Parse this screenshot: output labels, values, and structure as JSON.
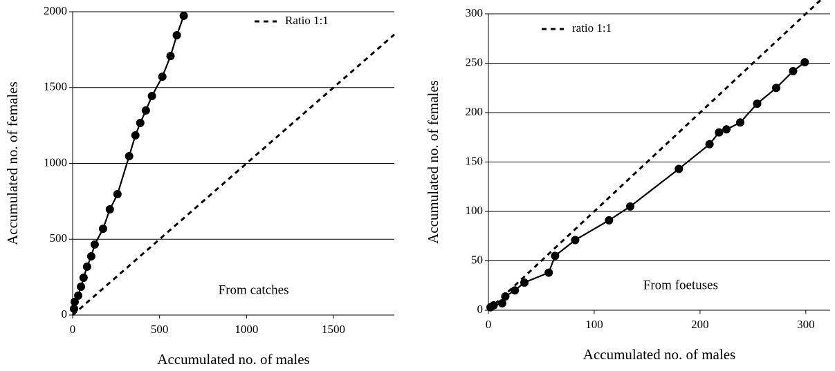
{
  "chart_data": [
    {
      "type": "line",
      "xlabel": "Accumulated no. of males",
      "ylabel": "Accumulated no. of females",
      "annotation": "From catches",
      "xlim": [
        0,
        1850
      ],
      "ylim": [
        0,
        2000
      ],
      "xticks": [
        0,
        500,
        1000,
        1500
      ],
      "yticks": [
        0,
        500,
        1000,
        1500,
        2000
      ],
      "grid": true,
      "legend": "top-right",
      "series": [
        {
          "color": "#000000",
          "marker": true,
          "dash": false,
          "x": [
            8,
            12,
            32,
            48,
            63,
            83,
            107,
            127,
            175,
            214,
            258,
            325,
            361,
            389,
            421,
            456,
            516,
            563,
            599,
            639
          ],
          "values": [
            41,
            87,
            128,
            187,
            246,
            319,
            387,
            465,
            569,
            697,
            797,
            1048,
            1185,
            1267,
            1349,
            1444,
            1572,
            1708,
            1845,
            1973
          ]
        },
        {
          "name": "Ratio 1:1",
          "color": "#000000",
          "marker": false,
          "dash": true,
          "x": [
            0,
            1850
          ],
          "values": [
            0,
            1850
          ]
        }
      ]
    },
    {
      "type": "line",
      "xlabel": "Accumulated no. of males",
      "ylabel": "Accumulated no. of females",
      "annotation": "From foetuses",
      "xlim": [
        0,
        323
      ],
      "ylim": [
        0,
        300
      ],
      "xticks": [
        0,
        100,
        200,
        300
      ],
      "yticks": [
        0,
        50,
        100,
        150,
        200,
        250,
        300
      ],
      "grid": true,
      "legend": "top-left",
      "series": [
        {
          "color": "#000000",
          "marker": true,
          "dash": false,
          "x": [
            2,
            5,
            13,
            16,
            25,
            34,
            57,
            63,
            82,
            114,
            134,
            180,
            209,
            218,
            225,
            238,
            254,
            272,
            288,
            299
          ],
          "values": [
            3,
            5,
            7,
            14,
            20,
            28,
            38,
            55,
            71,
            91,
            105,
            143,
            168,
            180,
            183,
            190,
            209,
            225,
            242,
            251
          ]
        },
        {
          "name": "ratio 1:1",
          "color": "#000000",
          "marker": false,
          "dash": true,
          "x": [
            0,
            323
          ],
          "values": [
            0,
            323
          ]
        }
      ]
    }
  ]
}
